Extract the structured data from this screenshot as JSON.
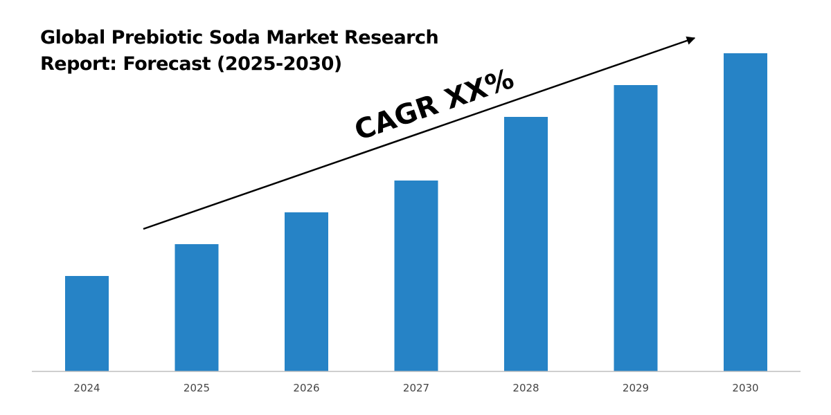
{
  "title": {
    "line1": "Global Prebiotic Soda Market Research",
    "line2": "Report: Forecast (2025-2030)"
  },
  "annotation": {
    "text": "CAGR XX%"
  },
  "colors": {
    "bar": "#2683c6",
    "axis": "#bfbfbf",
    "arrow": "#000000"
  },
  "chart_data": {
    "type": "bar",
    "title": "Global Prebiotic Soda Market Research Report: Forecast (2025-2030)",
    "categories": [
      "2024",
      "2025",
      "2026",
      "2027",
      "2028",
      "2029",
      "2030"
    ],
    "values": [
      30,
      40,
      50,
      60,
      80,
      90,
      100
    ],
    "xlabel": "",
    "ylabel": "",
    "ylim": [
      0,
      100
    ],
    "grid": false,
    "legend": "none",
    "annotations": [
      "CAGR XX%"
    ]
  }
}
